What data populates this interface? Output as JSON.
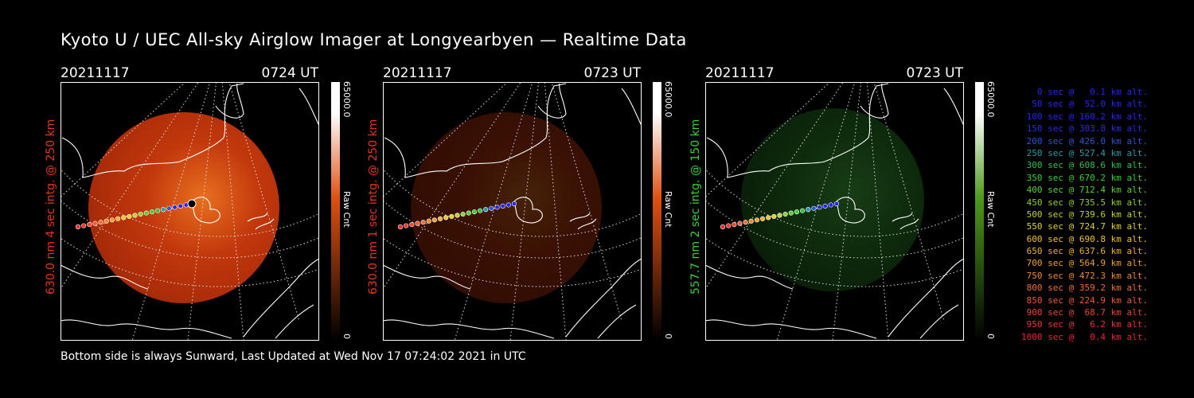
{
  "title": "Kyoto U / UEC All-sky Airglow Imager at Longyearbyen — Realtime Data",
  "footer": "Bottom side is always Sunward, Last Updated at Wed Nov 17 07:24:02 2021 in UTC",
  "panels": [
    {
      "date": "20211117",
      "time": "0724 UT",
      "side_label": "630.0 nm 4 sec intg. @ 250 km",
      "side_color": "#e8361a",
      "colorbar_max": "65000.0",
      "colorbar_min": "0",
      "colorbar_unit": "Raw Cnt",
      "palette": "red",
      "brightness": 1.0
    },
    {
      "date": "20211117",
      "time": "0723 UT",
      "side_label": "630.0 nm 1 sec intg. @ 250 km",
      "side_color": "#e8361a",
      "colorbar_max": "65000.0",
      "colorbar_min": "0",
      "colorbar_unit": "Raw Cnt",
      "palette": "red",
      "brightness": 0.3
    },
    {
      "date": "20211117",
      "time": "0723 UT",
      "side_label": "557.7 nm 2 sec intg. @ 150 km",
      "side_color": "#39d13b",
      "colorbar_max": "65000.0",
      "colorbar_min": "0",
      "colorbar_unit": "Raw Cnt",
      "palette": "green",
      "brightness": 0.5
    }
  ],
  "legend": [
    {
      "text": "0 sec @   0.1 km alt.",
      "color": "#2424ff"
    },
    {
      "text": "50 sec @  52.0 km alt.",
      "color": "#2424ff"
    },
    {
      "text": "100 sec @ 160.2 km alt.",
      "color": "#2424ff"
    },
    {
      "text": "150 sec @ 303.8 km alt.",
      "color": "#2a2ae8"
    },
    {
      "text": "200 sec @ 426.0 km alt.",
      "color": "#2a55d8"
    },
    {
      "text": "250 sec @ 527.4 km alt.",
      "color": "#2a9ab0"
    },
    {
      "text": "300 sec @ 608.6 km alt.",
      "color": "#2fc24a"
    },
    {
      "text": "350 sec @ 670.2 km alt.",
      "color": "#34d12f"
    },
    {
      "text": "400 sec @ 712.4 km alt.",
      "color": "#55d12f"
    },
    {
      "text": "450 sec @ 735.5 km alt.",
      "color": "#8fd12f"
    },
    {
      "text": "500 sec @ 739.6 km alt.",
      "color": "#c2d12f"
    },
    {
      "text": "550 sec @ 724.7 km alt.",
      "color": "#e0d12f"
    },
    {
      "text": "600 sec @ 690.8 km alt.",
      "color": "#f0c22f"
    },
    {
      "text": "650 sec @ 637.6 km alt.",
      "color": "#f0b02f"
    },
    {
      "text": "700 sec @ 564.9 km alt.",
      "color": "#f09e2f"
    },
    {
      "text": "750 sec @ 472.3 km alt.",
      "color": "#f0882f"
    },
    {
      "text": "800 sec @ 359.2 km alt.",
      "color": "#f0702f"
    },
    {
      "text": "850 sec @ 224.9 km alt.",
      "color": "#f05a2f"
    },
    {
      "text": "900 sec @  68.7 km alt.",
      "color": "#f0452f"
    },
    {
      "text": "950 sec @   6.2 km alt.",
      "color": "#f0342f"
    },
    {
      "text": "1000 sec @   0.4 km alt.",
      "color": "#f0242f"
    }
  ]
}
